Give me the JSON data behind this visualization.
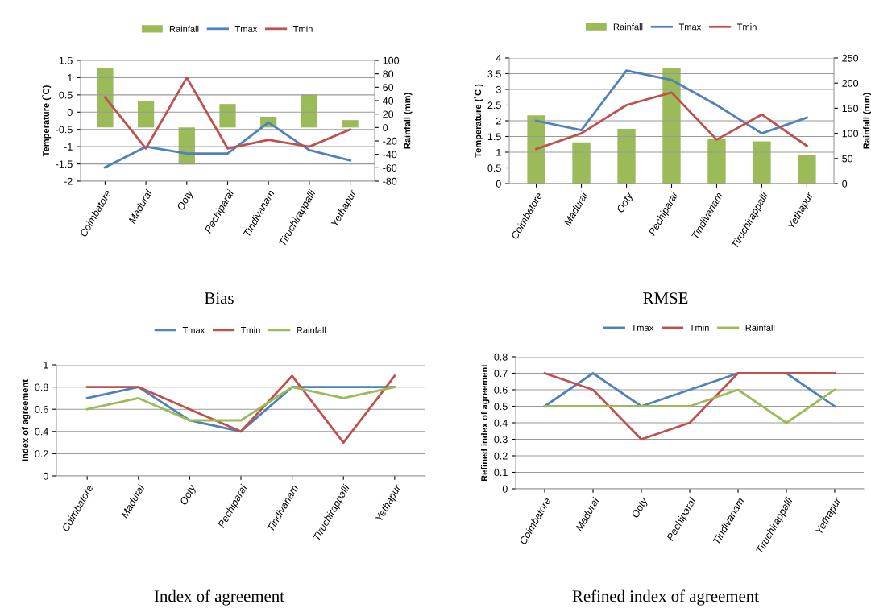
{
  "chart_data": [
    {
      "type": "bar",
      "categories": [
        "Coimbatore",
        "Madurai",
        "Ooty",
        "Pechiparai",
        "Tindivanam",
        "Tiruchirappalli",
        "Yethapur"
      ],
      "ylabel": "Temperature (˚C)",
      "y2label": "Rainfall (mm)",
      "ylim": [
        -2,
        1.5
      ],
      "yticks": [
        -2,
        -1.5,
        -1,
        -0.5,
        0,
        0.5,
        1,
        1.5
      ],
      "y2lim": [
        -80,
        100
      ],
      "y2ticks": [
        -80,
        -60,
        -40,
        -20,
        0,
        20,
        40,
        60,
        80,
        100
      ],
      "grid": "y",
      "legend": "top",
      "annotations": [
        "Bias"
      ],
      "series": [
        {
          "name": "Rainfall",
          "type": "bar",
          "axis": "y2",
          "color": "#9bbb59",
          "values": [
            88,
            40,
            -55,
            35,
            16,
            49,
            11
          ]
        },
        {
          "name": "Tmax",
          "type": "line",
          "color": "#4f81bd",
          "values": [
            -1.6,
            -1.0,
            -1.2,
            -1.2,
            -0.3,
            -1.1,
            -1.4
          ]
        },
        {
          "name": "Tmin",
          "type": "line",
          "color": "#c0504d",
          "values": [
            0.43,
            -1.05,
            1.0,
            -1.05,
            -0.8,
            -1.0,
            -0.5
          ]
        }
      ]
    },
    {
      "type": "bar",
      "categories": [
        "Coimbatore",
        "Madurai",
        "Ooty",
        "Pechiparai",
        "Tindivanam",
        "Tiruchirappalli",
        "Yethapur"
      ],
      "ylabel": "Temperature (˚C )",
      "y2label": "Rainfall (mm)",
      "ylim": [
        0,
        4
      ],
      "yticks": [
        0,
        0.5,
        1,
        1.5,
        2,
        2.5,
        3,
        3.5,
        4
      ],
      "y2lim": [
        0,
        250
      ],
      "y2ticks": [
        0,
        50,
        100,
        150,
        200,
        250
      ],
      "grid": "y",
      "legend": "top",
      "annotations": [
        "RMSE"
      ],
      "series": [
        {
          "name": "Rainfall",
          "type": "bar",
          "axis": "y2",
          "color": "#9bbb59",
          "values": [
            136,
            82,
            109,
            229,
            89,
            84,
            57
          ]
        },
        {
          "name": "Tmax",
          "type": "line",
          "color": "#4f81bd",
          "values": [
            2.0,
            1.7,
            3.6,
            3.3,
            2.5,
            1.6,
            2.1
          ]
        },
        {
          "name": "Tmin",
          "type": "line",
          "color": "#c0504d",
          "values": [
            1.1,
            1.6,
            2.5,
            2.9,
            1.4,
            2.2,
            1.2
          ]
        }
      ]
    },
    {
      "type": "line",
      "categories": [
        "Coimbatore",
        "Madurai",
        "Ooty",
        "Pechiparai",
        "Tindivanam",
        "Tiruchirappalli",
        "Yethapur"
      ],
      "ylabel": "Index of agreement",
      "ylim": [
        0,
        1
      ],
      "yticks": [
        0,
        0.2,
        0.4,
        0.6,
        0.8,
        1
      ],
      "grid": "y",
      "legend": "top",
      "annotations": [
        "Index of agreement"
      ],
      "series": [
        {
          "name": "Tmax",
          "color": "#4f81bd",
          "values": [
            0.7,
            0.8,
            0.5,
            0.4,
            0.8,
            0.8,
            0.8
          ]
        },
        {
          "name": "Tmin",
          "color": "#c0504d",
          "values": [
            0.8,
            0.8,
            0.6,
            0.4,
            0.9,
            0.3,
            0.9
          ]
        },
        {
          "name": "Rainfall",
          "color": "#9bbb59",
          "values": [
            0.6,
            0.7,
            0.5,
            0.5,
            0.8,
            0.7,
            0.8
          ]
        }
      ]
    },
    {
      "type": "line",
      "categories": [
        "Coimbatore",
        "Madurai",
        "Ooty",
        "Pechiparai",
        "Tindivanam",
        "Tiruchirappalli",
        "Yethapur"
      ],
      "ylabel": "Refined index of agreement",
      "ylim": [
        0,
        0.8
      ],
      "yticks": [
        0,
        0.1,
        0.2,
        0.3,
        0.4,
        0.5,
        0.6,
        0.7,
        0.8
      ],
      "grid": "y",
      "legend": "top",
      "annotations": [
        "Refined index of agreement"
      ],
      "series": [
        {
          "name": "Tmax",
          "color": "#4f81bd",
          "values": [
            0.5,
            0.7,
            0.5,
            0.6,
            0.7,
            0.7,
            0.5
          ]
        },
        {
          "name": "Tmin",
          "color": "#c0504d",
          "values": [
            0.7,
            0.6,
            0.3,
            0.4,
            0.7,
            0.7,
            0.7
          ]
        },
        {
          "name": "Rainfall",
          "color": "#9bbb59",
          "values": [
            0.5,
            0.5,
            0.5,
            0.5,
            0.6,
            0.4,
            0.6
          ]
        }
      ]
    }
  ]
}
